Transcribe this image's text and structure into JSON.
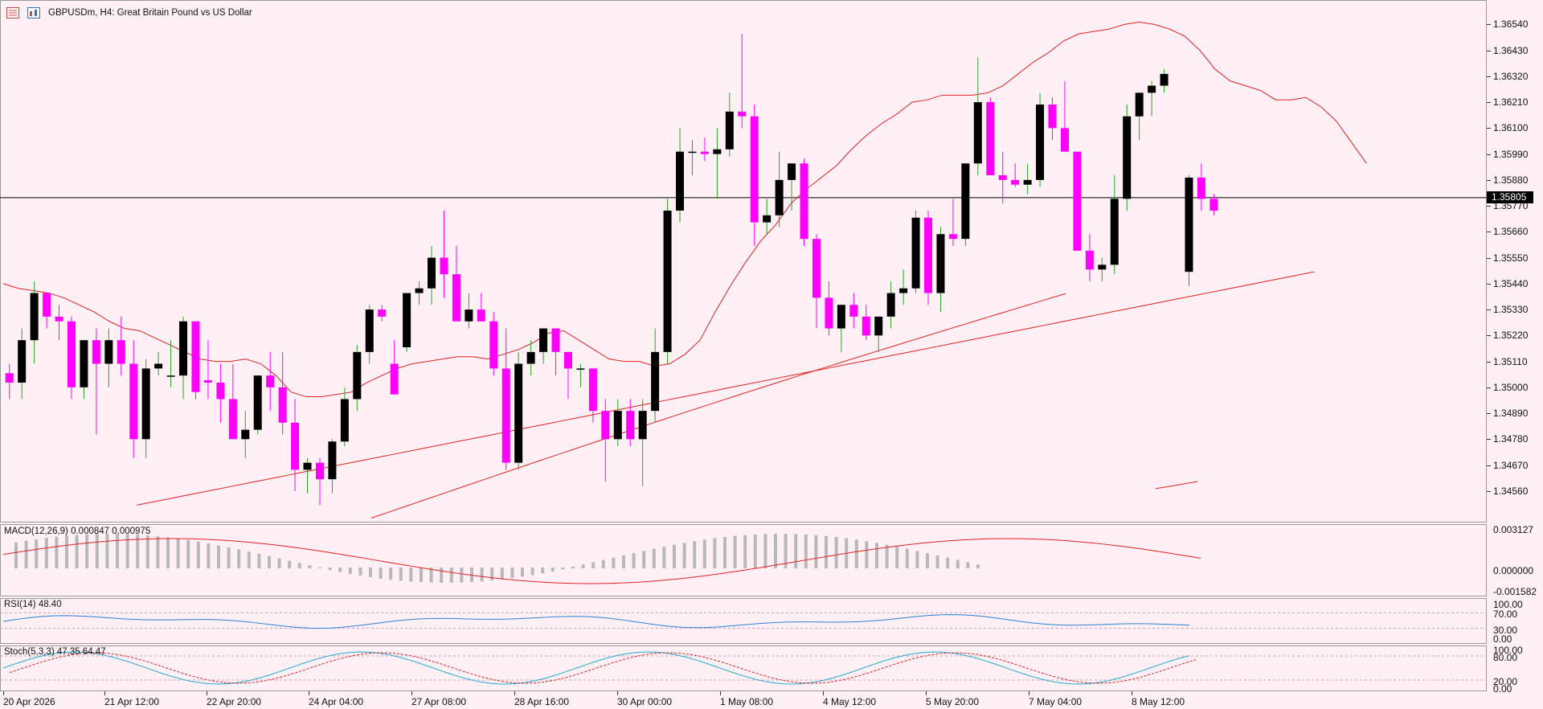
{
  "main": {
    "title": "GBPUSDm, H4:  Great Britain Pound vs US Dollar",
    "price_ticks": [
      "1.36540",
      "1.36430",
      "1.36320",
      "1.36210",
      "1.36100",
      "1.35990",
      "1.35880",
      "1.35770",
      "1.35660",
      "1.35550",
      "1.35440",
      "1.35330",
      "1.35220",
      "1.35110",
      "1.35000",
      "1.34890",
      "1.34780",
      "1.34670",
      "1.34560"
    ],
    "current_price": "1.35805",
    "current_price_value": 1.35805,
    "y_min": 1.3444,
    "y_max": 1.3663
  },
  "indicators": {
    "macd": {
      "label": "MACD(12,26,9) 0.000847 0.000975",
      "ticks": [
        "0.003127",
        "0.000000",
        "-0.001582"
      ]
    },
    "rsi": {
      "label": "RSI(14) 48.40",
      "ticks": [
        "100.00",
        "70.00",
        "30.00",
        "0.00"
      ]
    },
    "stoch": {
      "label": "Stoch(5,3,3) 47.35 64.47",
      "ticks": [
        "100.00",
        "80.00",
        "20.00",
        "0.00"
      ]
    }
  },
  "time_labels": [
    "20 Apr 2026",
    "21 Apr 12:00",
    "22 Apr 20:00",
    "24 Apr 04:00",
    "27 Apr 08:00",
    "28 Apr 16:00",
    "30 Apr 00:00",
    "1 May 08:00",
    "4 May 12:00",
    "5 May 20:00",
    "7 May 04:00",
    "8 May 12:00"
  ],
  "colors": {
    "bull": "#000000",
    "bear": "#ff00ff",
    "wick_bull": "#22aa22",
    "wick_bear": "#ff00ff",
    "ma": "#e02020",
    "rsi": "#2a7fd4",
    "stoch_main": "#22aacc",
    "stoch_signal": "#e02020",
    "hist": "#b8b8b8"
  },
  "chart_data": {
    "type": "candlestick",
    "symbol": "GBPUSDm",
    "timeframe": "H4",
    "candles": [
      [
        1.3506,
        1.351,
        1.3495,
        1.3502
      ],
      [
        1.3502,
        1.3525,
        1.3495,
        1.352
      ],
      [
        1.352,
        1.3545,
        1.351,
        1.354
      ],
      [
        1.354,
        1.354,
        1.3525,
        1.353
      ],
      [
        1.353,
        1.3535,
        1.352,
        1.3528
      ],
      [
        1.3528,
        1.353,
        1.3495,
        1.35
      ],
      [
        1.35,
        1.352,
        1.3495,
        1.352
      ],
      [
        1.352,
        1.3525,
        1.348,
        1.351
      ],
      [
        1.351,
        1.3525,
        1.35,
        1.352
      ],
      [
        1.352,
        1.353,
        1.3505,
        1.351
      ],
      [
        1.351,
        1.352,
        1.347,
        1.3478
      ],
      [
        1.3478,
        1.3512,
        1.347,
        1.3508
      ],
      [
        1.3508,
        1.3515,
        1.3505,
        1.351
      ],
      [
        1.3505,
        1.352,
        1.35,
        1.3505
      ],
      [
        1.3505,
        1.353,
        1.3495,
        1.3528
      ],
      [
        1.3528,
        1.3528,
        1.3495,
        1.3498
      ],
      [
        1.3503,
        1.352,
        1.3495,
        1.3502
      ],
      [
        1.3502,
        1.351,
        1.3485,
        1.3495
      ],
      [
        1.3495,
        1.351,
        1.348,
        1.3478
      ],
      [
        1.3478,
        1.349,
        1.347,
        1.3482
      ],
      [
        1.3482,
        1.3505,
        1.348,
        1.3505
      ],
      [
        1.3505,
        1.3515,
        1.349,
        1.35
      ],
      [
        1.35,
        1.3515,
        1.348,
        1.3485
      ],
      [
        1.3485,
        1.3495,
        1.3456,
        1.3465
      ],
      [
        1.3465,
        1.347,
        1.3455,
        1.3468
      ],
      [
        1.3468,
        1.347,
        1.345,
        1.3461
      ],
      [
        1.3461,
        1.3478,
        1.3455,
        1.3477
      ],
      [
        1.3477,
        1.35,
        1.3475,
        1.3495
      ],
      [
        1.3495,
        1.3518,
        1.349,
        1.3515
      ],
      [
        1.3515,
        1.3535,
        1.351,
        1.3533
      ],
      [
        1.3533,
        1.3535,
        1.3528,
        1.353
      ],
      [
        1.351,
        1.352,
        1.3497,
        1.3497
      ],
      [
        1.3517,
        1.3535,
        1.3515,
        1.354
      ],
      [
        1.354,
        1.3545,
        1.3535,
        1.3542
      ],
      [
        1.3542,
        1.356,
        1.3535,
        1.3555
      ],
      [
        1.3555,
        1.3575,
        1.3538,
        1.3548
      ],
      [
        1.3548,
        1.356,
        1.3528,
        1.3528
      ],
      [
        1.3528,
        1.354,
        1.3525,
        1.3533
      ],
      [
        1.3533,
        1.354,
        1.353,
        1.3528
      ],
      [
        1.3528,
        1.3532,
        1.3505,
        1.3508
      ],
      [
        1.3508,
        1.3525,
        1.3465,
        1.3468
      ],
      [
        1.3468,
        1.3515,
        1.3465,
        1.351
      ],
      [
        1.351,
        1.352,
        1.3505,
        1.3515
      ],
      [
        1.3515,
        1.3525,
        1.351,
        1.3525
      ],
      [
        1.3525,
        1.3525,
        1.3505,
        1.3515
      ],
      [
        1.3515,
        1.3515,
        1.3495,
        1.3508
      ],
      [
        1.3508,
        1.351,
        1.35,
        1.3508
      ],
      [
        1.3508,
        1.3508,
        1.3485,
        1.349
      ],
      [
        1.349,
        1.3495,
        1.346,
        1.3478
      ],
      [
        1.3478,
        1.3495,
        1.3475,
        1.349
      ],
      [
        1.349,
        1.3495,
        1.3475,
        1.3478
      ],
      [
        1.3478,
        1.3495,
        1.3458,
        1.349
      ],
      [
        1.349,
        1.3525,
        1.3485,
        1.3515
      ],
      [
        1.3515,
        1.358,
        1.351,
        1.3575
      ],
      [
        1.3575,
        1.361,
        1.357,
        1.36
      ],
      [
        1.36,
        1.3605,
        1.359,
        1.36
      ],
      [
        1.36,
        1.3606,
        1.3596,
        1.3599
      ],
      [
        1.3599,
        1.361,
        1.358,
        1.3601
      ],
      [
        1.3601,
        1.3625,
        1.3598,
        1.3617
      ],
      [
        1.3617,
        1.365,
        1.361,
        1.3615
      ],
      [
        1.3615,
        1.362,
        1.356,
        1.357
      ],
      [
        1.357,
        1.358,
        1.3565,
        1.3573
      ],
      [
        1.3573,
        1.36,
        1.3568,
        1.3588
      ],
      [
        1.3588,
        1.3595,
        1.3575,
        1.3595
      ],
      [
        1.3595,
        1.3597,
        1.356,
        1.3563
      ],
      [
        1.3563,
        1.3565,
        1.3525,
        1.3538
      ],
      [
        1.3538,
        1.3545,
        1.3522,
        1.3525
      ],
      [
        1.3525,
        1.3535,
        1.3515,
        1.3535
      ],
      [
        1.3535,
        1.354,
        1.3525,
        1.353
      ],
      [
        1.353,
        1.3535,
        1.352,
        1.3522
      ],
      [
        1.3522,
        1.3528,
        1.3515,
        1.353
      ],
      [
        1.353,
        1.3545,
        1.3525,
        1.354
      ],
      [
        1.354,
        1.355,
        1.3535,
        1.3542
      ],
      [
        1.3542,
        1.3575,
        1.354,
        1.3572
      ],
      [
        1.3572,
        1.3575,
        1.3535,
        1.354
      ],
      [
        1.354,
        1.3568,
        1.3532,
        1.3565
      ],
      [
        1.3565,
        1.358,
        1.356,
        1.3563
      ],
      [
        1.3563,
        1.3595,
        1.356,
        1.3595
      ],
      [
        1.3595,
        1.364,
        1.359,
        1.3621
      ],
      [
        1.3621,
        1.3623,
        1.359,
        1.359
      ],
      [
        1.359,
        1.36,
        1.3578,
        1.3588
      ],
      [
        1.3588,
        1.3595,
        1.3585,
        1.3586
      ],
      [
        1.3586,
        1.3595,
        1.3582,
        1.3588
      ],
      [
        1.3588,
        1.3625,
        1.3585,
        1.362
      ],
      [
        1.362,
        1.3623,
        1.3605,
        1.361
      ],
      [
        1.361,
        1.363,
        1.36,
        1.36
      ],
      [
        1.36,
        1.36,
        1.3558,
        1.3558
      ],
      [
        1.3558,
        1.3565,
        1.3545,
        1.355
      ],
      [
        1.355,
        1.3555,
        1.3545,
        1.3552
      ],
      [
        1.3552,
        1.359,
        1.3548,
        1.358
      ],
      [
        1.358,
        1.362,
        1.3575,
        1.3615
      ],
      [
        1.3615,
        1.3625,
        1.3605,
        1.3625
      ],
      [
        1.3625,
        1.363,
        1.3615,
        1.3628
      ],
      [
        1.3628,
        1.3635,
        1.3625,
        1.3633
      ],
      null,
      [
        1.3549,
        1.359,
        1.3543,
        1.3589
      ],
      [
        1.3589,
        1.3595,
        1.3575,
        1.358
      ],
      [
        1.358,
        1.3582,
        1.3573,
        1.3575
      ]
    ],
    "moving_averages": [
      {
        "period_shown_as": "fast",
        "values": [
          1.3544,
          1.3542,
          1.3541,
          1.354,
          1.3538,
          1.3535,
          1.3532,
          1.3528,
          1.3525,
          1.3524,
          1.3521,
          1.3518,
          1.3515,
          1.3512,
          1.3511,
          1.3511,
          1.3512,
          1.351,
          1.3505,
          1.3498,
          1.3496,
          1.3496,
          1.3497,
          1.3498,
          1.3502,
          1.3505,
          1.3508,
          1.351,
          1.3511,
          1.3512,
          1.3513,
          1.3513,
          1.3512,
          1.3514,
          1.3516,
          1.3519,
          1.3523,
          1.3524,
          1.352,
          1.3516,
          1.3512,
          1.3511,
          1.3511,
          1.3509,
          1.351,
          1.3514,
          1.352,
          1.3532,
          1.3543,
          1.3553,
          1.3562,
          1.3569,
          1.3578,
          1.3584,
          1.3589,
          1.3594,
          1.3601,
          1.3607,
          1.3612,
          1.3616,
          1.3621,
          1.3622,
          1.3624,
          1.3624,
          1.3624,
          1.3625,
          1.3628,
          1.3633,
          1.3638,
          1.3642,
          1.3647,
          1.365,
          1.3651,
          1.3652,
          1.3654,
          1.3655,
          1.3654,
          1.3652,
          1.3649,
          1.3643,
          1.3635,
          1.363,
          1.3628,
          1.3626,
          1.3622,
          1.3622,
          1.3623,
          1.3619,
          1.3613,
          1.3604,
          1.3595
        ]
      },
      {
        "period_shown_as": "medium"
      },
      {
        "period_shown_as": "slow"
      }
    ]
  }
}
